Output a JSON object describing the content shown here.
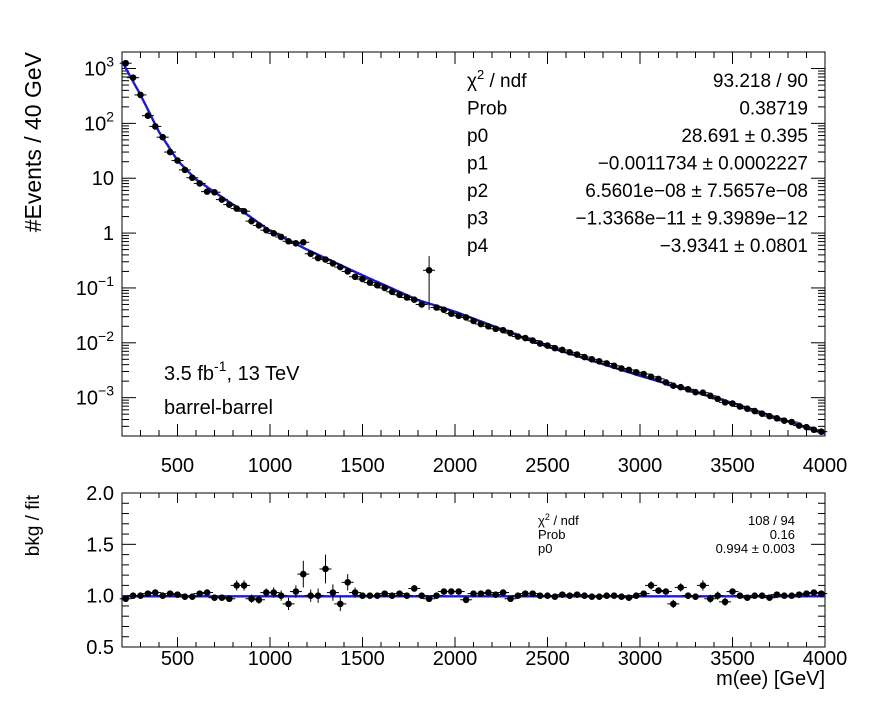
{
  "chart_data": [
    {
      "type": "scatter",
      "panel": "main",
      "ylabel": "#Events / 40 GeV",
      "log_y": true,
      "xlim": [
        200,
        4000
      ],
      "ylim": [
        0.0002,
        2000
      ],
      "x_ticks": [
        500,
        1000,
        1500,
        2000,
        2500,
        3000,
        3500,
        4000
      ],
      "x_tick_labels": [
        "500",
        "1000",
        "1500",
        "2000",
        "2500",
        "3000",
        "3500",
        "4000"
      ],
      "y_ticks": [
        0.001,
        0.01,
        0.1,
        1,
        10,
        100,
        1000
      ],
      "y_tick_labels": [
        {
          "base": "10",
          "exp": "−3"
        },
        {
          "base": "10",
          "exp": "−2"
        },
        {
          "base": "10",
          "exp": "−1"
        },
        {
          "base": "1",
          "exp": ""
        },
        {
          "base": "10",
          "exp": ""
        },
        {
          "base": "10",
          "exp": "2"
        },
        {
          "base": "10",
          "exp": "3"
        }
      ],
      "series": [
        {
          "type": "points_with_errors",
          "color": "#000000",
          "x": [
            220,
            260,
            300,
            340,
            380,
            420,
            460,
            500,
            540,
            580,
            620,
            660,
            700,
            740,
            780,
            820,
            860,
            900,
            940,
            980,
            1020,
            1060,
            1100,
            1140,
            1180,
            1220,
            1260,
            1300,
            1340,
            1380,
            1420,
            1460,
            1500,
            1540,
            1580,
            1620,
            1660,
            1700,
            1740,
            1780,
            1820,
            1860,
            1900,
            1940,
            1980,
            2020,
            2060,
            2100,
            2140,
            2180,
            2220,
            2260,
            2300,
            2340,
            2380,
            2420,
            2460,
            2500,
            2540,
            2580,
            2620,
            2660,
            2700,
            2740,
            2780,
            2820,
            2860,
            2900,
            2940,
            2980,
            3020,
            3060,
            3100,
            3140,
            3180,
            3220,
            3260,
            3300,
            3340,
            3380,
            3420,
            3460,
            3500,
            3540,
            3580,
            3620,
            3660,
            3700,
            3740,
            3780,
            3820,
            3860,
            3900,
            3940,
            3980
          ],
          "y": [
            1250,
            680,
            330,
            138,
            88,
            56,
            30,
            21,
            14.2,
            10.2,
            8.05,
            5.7,
            5.55,
            4.08,
            3.3,
            2.8,
            2.5,
            1.65,
            1.38,
            1.13,
            0.99,
            0.85,
            0.71,
            0.65,
            0.68,
            0.42,
            0.35,
            0.33,
            0.28,
            0.24,
            0.2,
            0.16,
            0.145,
            0.125,
            0.112,
            0.1,
            0.085,
            0.075,
            0.067,
            0.061,
            0.05,
            0.21,
            0.044,
            0.04,
            0.034,
            0.031,
            0.029,
            0.025,
            0.022,
            0.02,
            0.018,
            0.017,
            0.015,
            0.013,
            0.0122,
            0.011,
            0.0097,
            0.0089,
            0.008,
            0.0074,
            0.0067,
            0.0061,
            0.0055,
            0.005,
            0.0046,
            0.0042,
            0.0038,
            0.0034,
            0.0032,
            0.0029,
            0.0027,
            0.0024,
            0.0022,
            0.0019,
            0.00165,
            0.00155,
            0.00142,
            0.00126,
            0.00123,
            0.00108,
            0.00095,
            0.00082,
            0.00078,
            0.00069,
            0.00063,
            0.00057,
            0.00051,
            0.00046,
            0.00042,
            0.00038,
            0.00036,
            0.00031,
            0.00029,
            0.00026,
            0.00024
          ],
          "yerr": [
            0,
            0,
            0,
            0,
            0,
            0,
            0,
            0,
            0,
            0,
            0,
            0,
            0,
            0,
            0,
            0,
            0,
            0,
            0,
            0,
            0,
            0,
            0,
            0,
            0,
            0,
            0,
            0,
            0,
            0,
            0,
            0,
            0,
            0,
            0,
            0,
            0,
            0,
            0,
            0,
            0,
            0.17,
            0,
            0,
            0,
            0,
            0,
            0,
            0,
            0,
            0,
            0,
            0,
            0,
            0,
            0,
            0,
            0,
            0,
            0,
            0,
            0,
            0,
            0,
            0,
            0,
            0,
            0,
            0,
            0,
            0,
            0,
            0,
            0,
            0,
            0,
            0,
            0,
            0,
            0,
            0,
            0,
            0,
            0,
            0,
            0,
            0,
            0,
            0,
            0,
            0,
            0,
            0,
            0,
            0
          ]
        },
        {
          "type": "fit_curve",
          "color": "#1a1adf",
          "x": [
            200,
            300,
            400,
            500,
            600,
            800,
            1000,
            1200,
            1500,
            1800,
            2000,
            2500,
            3000,
            3500,
            4000
          ],
          "y": [
            1350,
            330,
            70,
            21,
            9.5,
            3.3,
            1.1,
            0.5,
            0.17,
            0.06,
            0.037,
            0.0085,
            0.0025,
            0.0008,
            0.00022
          ]
        }
      ],
      "annotations": [
        "3.5 fb⁻¹, 13 TeV",
        "barrel-barrel"
      ],
      "stats_box": [
        {
          "label": "χ² / ndf",
          "value": "93.218 / 90"
        },
        {
          "label": "Prob",
          "value": "0.38719"
        },
        {
          "label": "p0",
          "value": "28.691 ± 0.395"
        },
        {
          "label": "p1",
          "value": "−0.0011734 ± 0.0002227"
        },
        {
          "label": "p2",
          "value": "6.5601e−08 ± 7.5657e−08"
        },
        {
          "label": "p3",
          "value": "−1.3368e−11 ± 9.3989e−12"
        },
        {
          "label": "p4",
          "value": "−3.9341 ± 0.0801"
        }
      ]
    },
    {
      "type": "scatter",
      "panel": "ratio",
      "xlabel": "m(ee) [GeV]",
      "ylabel": "bkg / fit",
      "xlim": [
        200,
        4000
      ],
      "ylim": [
        0.5,
        2.0
      ],
      "x_ticks": [
        500,
        1000,
        1500,
        2000,
        2500,
        3000,
        3500,
        4000
      ],
      "x_tick_labels": [
        "500",
        "1000",
        "1500",
        "2000",
        "2500",
        "3000",
        "3500",
        "4000"
      ],
      "y_ticks": [
        0.5,
        1.0,
        1.5,
        2.0
      ],
      "y_tick_labels": [
        "0.5",
        "1.0",
        "1.5",
        "2.0"
      ],
      "series": [
        {
          "type": "points_with_errors",
          "color": "#000000",
          "x": [
            220,
            260,
            300,
            340,
            380,
            420,
            460,
            500,
            540,
            580,
            620,
            660,
            700,
            740,
            780,
            820,
            860,
            900,
            940,
            980,
            1020,
            1060,
            1100,
            1140,
            1180,
            1220,
            1260,
            1300,
            1340,
            1380,
            1420,
            1460,
            1500,
            1540,
            1580,
            1620,
            1660,
            1700,
            1740,
            1780,
            1820,
            1860,
            1900,
            1940,
            1980,
            2020,
            2060,
            2100,
            2140,
            2180,
            2220,
            2260,
            2300,
            2340,
            2380,
            2420,
            2460,
            2500,
            2540,
            2580,
            2620,
            2660,
            2700,
            2740,
            2780,
            2820,
            2860,
            2900,
            2940,
            2980,
            3020,
            3060,
            3100,
            3140,
            3180,
            3220,
            3260,
            3300,
            3340,
            3380,
            3420,
            3460,
            3500,
            3540,
            3580,
            3620,
            3660,
            3700,
            3740,
            3780,
            3820,
            3860,
            3900,
            3940,
            3980
          ],
          "y": [
            0.97,
            1.0,
            1.0,
            1.02,
            1.03,
            1.0,
            1.02,
            1.01,
            0.99,
            0.99,
            1.02,
            1.03,
            0.98,
            0.98,
            0.97,
            1.1,
            1.1,
            0.97,
            0.96,
            1.03,
            1.03,
            1.0,
            0.92,
            1.04,
            1.21,
            1.0,
            1.0,
            1.26,
            1.03,
            0.92,
            1.13,
            1.03,
            1.0,
            1.0,
            1.0,
            1.02,
            1.0,
            1.02,
            1.0,
            1.07,
            1.0,
            0.97,
            1.0,
            1.04,
            1.04,
            1.04,
            0.96,
            1.02,
            1.02,
            1.03,
            1.01,
            1.03,
            0.97,
            1.0,
            1.02,
            1.02,
            1.0,
            1.0,
            0.99,
            1.01,
            1.0,
            1.01,
            1.0,
            0.99,
            0.99,
            1.0,
            1.0,
            0.99,
            0.98,
            1.0,
            1.02,
            1.1,
            1.05,
            1.04,
            0.92,
            1.08,
            1.0,
            0.99,
            1.1,
            0.97,
            1.0,
            0.94,
            1.04,
            1.0,
            0.98,
            1.0,
            1.0,
            0.98,
            1.01,
            1.0,
            1.0,
            1.01,
            1.02,
            1.03,
            1.02
          ],
          "yerr": [
            0.02,
            0.02,
            0.02,
            0.02,
            0.02,
            0.02,
            0.02,
            0.02,
            0.02,
            0.02,
            0.02,
            0.02,
            0.03,
            0.03,
            0.03,
            0.05,
            0.05,
            0.04,
            0.04,
            0.04,
            0.05,
            0.05,
            0.06,
            0.06,
            0.13,
            0.06,
            0.07,
            0.14,
            0.08,
            0.07,
            0.08,
            0.05,
            0.03,
            0.03,
            0.03,
            0.03,
            0.03,
            0.03,
            0.03,
            0.03,
            0.03,
            0.03,
            0.03,
            0.03,
            0.03,
            0.03,
            0.03,
            0.03,
            0.03,
            0.03,
            0.03,
            0.03,
            0.03,
            0.02,
            0.02,
            0.02,
            0.02,
            0.02,
            0.02,
            0.02,
            0.02,
            0.02,
            0.02,
            0.02,
            0.02,
            0.02,
            0.02,
            0.02,
            0.02,
            0.02,
            0.02,
            0.04,
            0.03,
            0.03,
            0.04,
            0.04,
            0.03,
            0.03,
            0.05,
            0.04,
            0.04,
            0.04,
            0.03,
            0.02,
            0.02,
            0.02,
            0.02,
            0.02,
            0.02,
            0.02,
            0.02,
            0.02,
            0.02,
            0.02,
            0.02
          ]
        },
        {
          "type": "fit_line",
          "color": "#1a1adf",
          "y": 0.994
        }
      ],
      "stats_box": [
        {
          "label": "χ² / ndf",
          "value": "108 / 94"
        },
        {
          "label": "Prob",
          "value": "0.16"
        },
        {
          "label": "p0",
          "value": "0.994 ± 0.003"
        }
      ]
    }
  ]
}
